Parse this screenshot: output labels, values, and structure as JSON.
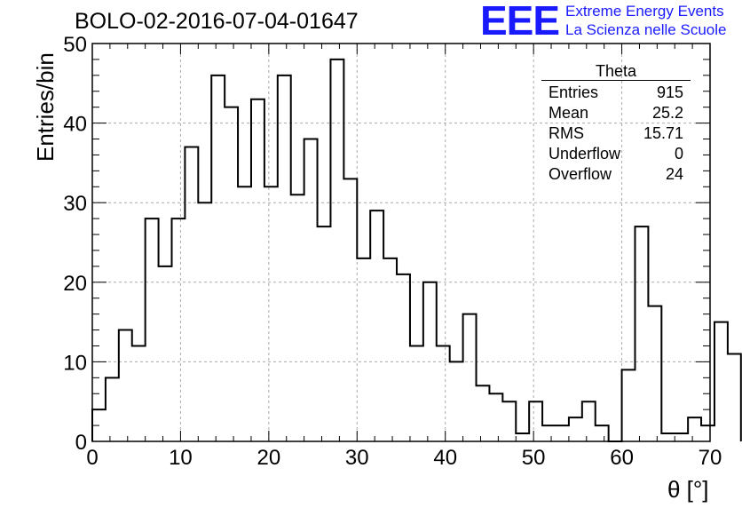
{
  "title": "BOLO-02-2016-07-04-01647",
  "brand": {
    "logo": "EEE",
    "line1": "Extreme Energy Events",
    "line2": "La Scienza nelle Scuole"
  },
  "stats": {
    "title": "Theta",
    "rows": [
      {
        "label": "Entries",
        "value": "915"
      },
      {
        "label": "Mean",
        "value": "25.2"
      },
      {
        "label": "RMS",
        "value": "15.71"
      },
      {
        "label": "Underflow",
        "value": "0"
      },
      {
        "label": "Overflow",
        "value": "24"
      }
    ]
  },
  "chart_data": {
    "type": "bar",
    "title": "BOLO-02-2016-07-04-01647",
    "xlabel": "θ [°]",
    "ylabel": "Entries/bin",
    "xlim": [
      0,
      70
    ],
    "ylim": [
      0,
      50
    ],
    "bin_width": 1.5,
    "x_ticks": [
      0,
      10,
      20,
      30,
      40,
      50,
      60,
      70
    ],
    "y_ticks": [
      0,
      10,
      20,
      30,
      40,
      50
    ],
    "grid": true,
    "series": [
      {
        "values": [
          4,
          8,
          14,
          12,
          28,
          22,
          28,
          37,
          30,
          46,
          42,
          32,
          43,
          32,
          46,
          31,
          38,
          27,
          48,
          33,
          23,
          29,
          23,
          21,
          12,
          20,
          12,
          10,
          16,
          7,
          6,
          5,
          1,
          5,
          2,
          2,
          3,
          5,
          2,
          0,
          9,
          27,
          17,
          1,
          1,
          3,
          2,
          15,
          11
        ]
      }
    ]
  }
}
